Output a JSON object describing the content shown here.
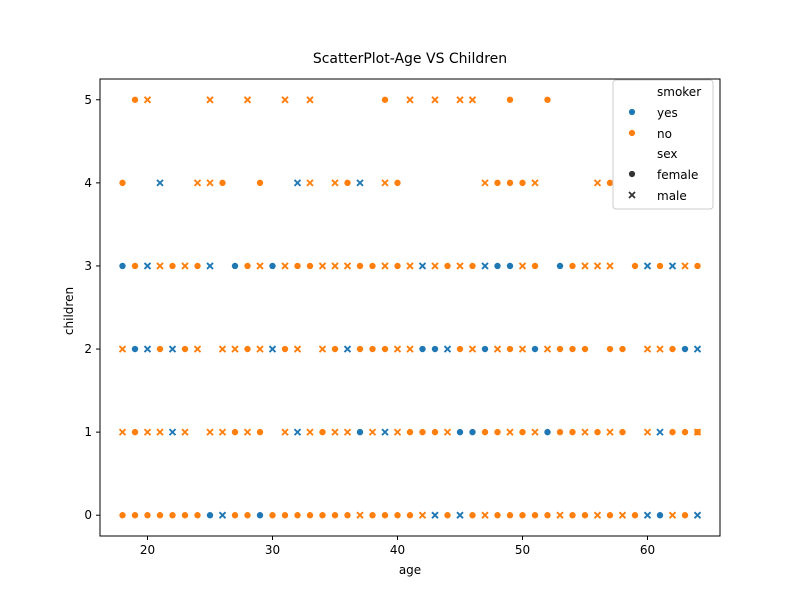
{
  "chart_data": {
    "type": "scatter",
    "title": "ScatterPlot-Age VS Children",
    "xlabel": "age",
    "ylabel": "children",
    "xlim": [
      16.2,
      65.8
    ],
    "ylim": [
      -0.25,
      5.25
    ],
    "xticks": [
      20,
      30,
      40,
      50,
      60
    ],
    "yticks": [
      0,
      1,
      2,
      3,
      4,
      5
    ],
    "grid": false,
    "legend": {
      "placement": "top-right",
      "hue_title": "smoker",
      "hue_items": [
        {
          "label": "yes",
          "color": "#1f77b4"
        },
        {
          "label": "no",
          "color": "#ff7f0e"
        }
      ],
      "style_title": "sex",
      "style_items": [
        {
          "label": "female",
          "marker": "circle"
        },
        {
          "label": "male",
          "marker": "x"
        }
      ]
    },
    "series": [
      {
        "smoker": "yes",
        "sex": "female",
        "color": "#1f77b4",
        "marker": "circle",
        "points": [
          [
            19,
            2
          ],
          [
            18,
            3
          ],
          [
            25,
            0
          ],
          [
            27,
            3
          ],
          [
            29,
            0
          ],
          [
            30,
            3
          ],
          [
            37,
            1
          ],
          [
            42,
            2
          ],
          [
            43,
            2
          ],
          [
            45,
            1
          ],
          [
            46,
            1
          ],
          [
            47,
            2
          ],
          [
            48,
            3
          ],
          [
            49,
            3
          ],
          [
            51,
            2
          ],
          [
            52,
            1
          ],
          [
            53,
            3
          ],
          [
            61,
            0
          ],
          [
            63,
            2
          ]
        ]
      },
      {
        "smoker": "yes",
        "sex": "male",
        "color": "#1f77b4",
        "marker": "x",
        "points": [
          [
            20,
            2
          ],
          [
            20,
            3
          ],
          [
            21,
            4
          ],
          [
            22,
            1
          ],
          [
            22,
            2
          ],
          [
            25,
            3
          ],
          [
            26,
            0
          ],
          [
            30,
            2
          ],
          [
            32,
            1
          ],
          [
            32,
            4
          ],
          [
            36,
            2
          ],
          [
            37,
            4
          ],
          [
            39,
            1
          ],
          [
            42,
            3
          ],
          [
            43,
            0
          ],
          [
            44,
            2
          ],
          [
            45,
            0
          ],
          [
            47,
            3
          ],
          [
            60,
            0
          ],
          [
            60,
            3
          ],
          [
            61,
            1
          ],
          [
            62,
            3
          ],
          [
            64,
            0
          ],
          [
            64,
            2
          ]
        ]
      },
      {
        "smoker": "no",
        "sex": "female",
        "color": "#ff7f0e",
        "marker": "circle",
        "points": [
          [
            18,
            0
          ],
          [
            18,
            4
          ],
          [
            19,
            0
          ],
          [
            19,
            1
          ],
          [
            19,
            3
          ],
          [
            19,
            5
          ],
          [
            20,
            0
          ],
          [
            21,
            0
          ],
          [
            21,
            2
          ],
          [
            22,
            0
          ],
          [
            22,
            3
          ],
          [
            23,
            0
          ],
          [
            23,
            2
          ],
          [
            24,
            0
          ],
          [
            24,
            3
          ],
          [
            26,
            4
          ],
          [
            27,
            0
          ],
          [
            27,
            1
          ],
          [
            28,
            0
          ],
          [
            28,
            2
          ],
          [
            28,
            3
          ],
          [
            29,
            1
          ],
          [
            29,
            4
          ],
          [
            30,
            0
          ],
          [
            31,
            0
          ],
          [
            31,
            2
          ],
          [
            32,
            0
          ],
          [
            32,
            3
          ],
          [
            33,
            0
          ],
          [
            33,
            3
          ],
          [
            34,
            0
          ],
          [
            34,
            1
          ],
          [
            35,
            0
          ],
          [
            35,
            2
          ],
          [
            36,
            0
          ],
          [
            36,
            4
          ],
          [
            37,
            2
          ],
          [
            37,
            3
          ],
          [
            38,
            0
          ],
          [
            38,
            2
          ],
          [
            38,
            3
          ],
          [
            39,
            0
          ],
          [
            39,
            2
          ],
          [
            39,
            5
          ],
          [
            40,
            0
          ],
          [
            40,
            3
          ],
          [
            40,
            4
          ],
          [
            41,
            0
          ],
          [
            41,
            1
          ],
          [
            42,
            1
          ],
          [
            43,
            1
          ],
          [
            44,
            0
          ],
          [
            44,
            3
          ],
          [
            45,
            2
          ],
          [
            46,
            0
          ],
          [
            46,
            3
          ],
          [
            47,
            1
          ],
          [
            48,
            0
          ],
          [
            48,
            1
          ],
          [
            48,
            4
          ],
          [
            49,
            0
          ],
          [
            49,
            2
          ],
          [
            49,
            4
          ],
          [
            49,
            5
          ],
          [
            50,
            0
          ],
          [
            50,
            1
          ],
          [
            50,
            4
          ],
          [
            51,
            0
          ],
          [
            51,
            3
          ],
          [
            52,
            0
          ],
          [
            52,
            5
          ],
          [
            53,
            1
          ],
          [
            53,
            2
          ],
          [
            54,
            0
          ],
          [
            54,
            1
          ],
          [
            54,
            2
          ],
          [
            54,
            3
          ],
          [
            55,
            0
          ],
          [
            55,
            2
          ],
          [
            56,
            1
          ],
          [
            57,
            0
          ],
          [
            57,
            2
          ],
          [
            57,
            4
          ],
          [
            58,
            1
          ],
          [
            58,
            2
          ],
          [
            59,
            0
          ],
          [
            59,
            3
          ],
          [
            61,
            3
          ],
          [
            62,
            1
          ],
          [
            62,
            2
          ],
          [
            63,
            0
          ],
          [
            63,
            1
          ],
          [
            64,
            1
          ],
          [
            64,
            3
          ]
        ]
      },
      {
        "smoker": "no",
        "sex": "male",
        "color": "#ff7f0e",
        "marker": "x",
        "points": [
          [
            18,
            1
          ],
          [
            18,
            2
          ],
          [
            20,
            1
          ],
          [
            20,
            5
          ],
          [
            21,
            1
          ],
          [
            21,
            3
          ],
          [
            23,
            1
          ],
          [
            23,
            3
          ],
          [
            24,
            2
          ],
          [
            24,
            4
          ],
          [
            25,
            1
          ],
          [
            25,
            4
          ],
          [
            25,
            5
          ],
          [
            26,
            1
          ],
          [
            26,
            2
          ],
          [
            27,
            2
          ],
          [
            28,
            1
          ],
          [
            28,
            5
          ],
          [
            29,
            2
          ],
          [
            29,
            3
          ],
          [
            31,
            1
          ],
          [
            31,
            3
          ],
          [
            31,
            5
          ],
          [
            32,
            2
          ],
          [
            33,
            1
          ],
          [
            33,
            4
          ],
          [
            33,
            5
          ],
          [
            34,
            2
          ],
          [
            34,
            3
          ],
          [
            35,
            1
          ],
          [
            35,
            3
          ],
          [
            35,
            4
          ],
          [
            36,
            1
          ],
          [
            36,
            3
          ],
          [
            37,
            0
          ],
          [
            38,
            1
          ],
          [
            39,
            3
          ],
          [
            39,
            4
          ],
          [
            40,
            1
          ],
          [
            40,
            2
          ],
          [
            41,
            2
          ],
          [
            41,
            3
          ],
          [
            41,
            5
          ],
          [
            42,
            0
          ],
          [
            43,
            5
          ],
          [
            43,
            3
          ],
          [
            44,
            1
          ],
          [
            45,
            3
          ],
          [
            45,
            5
          ],
          [
            46,
            2
          ],
          [
            46,
            5
          ],
          [
            47,
            0
          ],
          [
            47,
            4
          ],
          [
            48,
            2
          ],
          [
            49,
            1
          ],
          [
            50,
            2
          ],
          [
            50,
            3
          ],
          [
            51,
            1
          ],
          [
            51,
            4
          ],
          [
            52,
            2
          ],
          [
            53,
            0
          ],
          [
            55,
            1
          ],
          [
            55,
            3
          ],
          [
            56,
            0
          ],
          [
            56,
            3
          ],
          [
            56,
            4
          ],
          [
            57,
            1
          ],
          [
            57,
            3
          ],
          [
            58,
            0
          ],
          [
            60,
            1
          ],
          [
            60,
            2
          ],
          [
            61,
            2
          ],
          [
            62,
            0
          ],
          [
            63,
            3
          ],
          [
            64,
            1
          ]
        ]
      }
    ]
  }
}
